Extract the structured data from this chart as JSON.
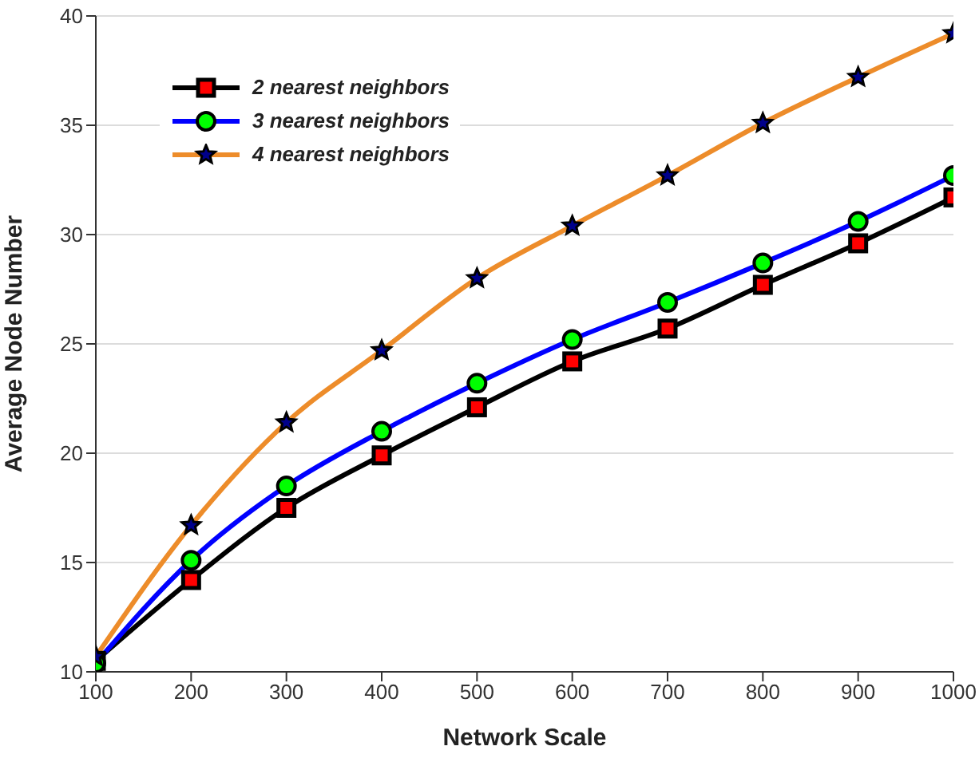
{
  "chart_data": {
    "type": "line",
    "xlabel": "Network Scale",
    "ylabel": "Average Node Number",
    "x": [
      100,
      200,
      300,
      400,
      500,
      600,
      700,
      800,
      900,
      1000
    ],
    "series": [
      {
        "name": "2 nearest neighbors",
        "color": "#000000",
        "marker": "square",
        "colors": [
          "#ff0000",
          "#ff0000",
          "#ff0000",
          "#ff0000",
          "#ff0000",
          "#ff0000",
          "#ff0000",
          "#ff0000",
          "#ff0000",
          "#ff0000"
        ],
        "values": [
          10.5,
          14.2,
          17.5,
          19.9,
          22.1,
          24.2,
          25.7,
          27.7,
          29.6,
          31.7
        ]
      },
      {
        "name": "3 nearest neighbors",
        "color": "#0000ff",
        "marker": "circle",
        "colors": [
          "#00ff00",
          "#00ff00",
          "#00ff00",
          "#00ff00",
          "#00ff00",
          "#00ff00",
          "#00ff00",
          "#00ff00",
          "#00ff00",
          "#00ff00"
        ],
        "values": [
          10.4,
          15.1,
          18.5,
          21.0,
          23.2,
          25.2,
          26.9,
          28.7,
          30.6,
          32.7
        ]
      },
      {
        "name": "4 nearest neighbors",
        "color": "#ed8c2a",
        "marker": "star",
        "colors": [
          "#00008b",
          "#00008b",
          "#00008b",
          "#00008b",
          "#00008b",
          "#00008b",
          "#00008b",
          "#00008b",
          "#00008b",
          "#00008b"
        ],
        "values": [
          10.7,
          16.7,
          21.4,
          24.7,
          28.0,
          30.4,
          32.7,
          35.1,
          37.2,
          39.2
        ]
      }
    ],
    "xlim": [
      100,
      1000
    ],
    "xticks": [
      100,
      200,
      300,
      400,
      500,
      600,
      700,
      800,
      900,
      1000
    ],
    "ylim": [
      10,
      40
    ],
    "yticks": [
      10,
      15,
      20,
      25,
      30,
      35,
      40
    ],
    "grid": "y",
    "legend": "top left",
    "line_style": "solid"
  }
}
